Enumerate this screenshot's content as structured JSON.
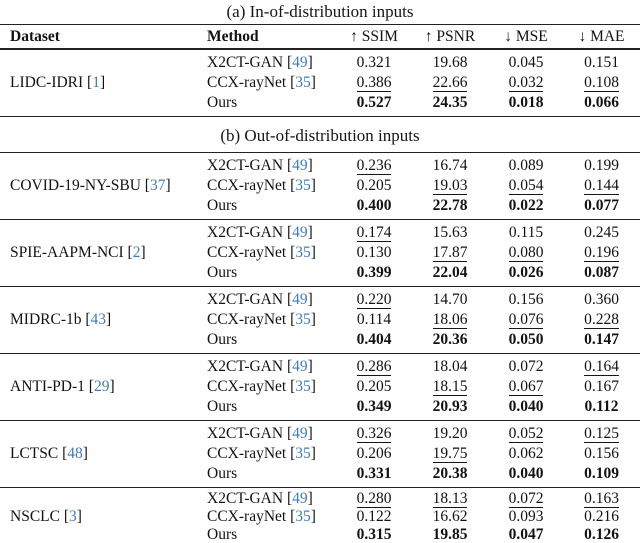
{
  "meta": {
    "background_color": "#ffffff",
    "text_color": "#121212",
    "rule_color": "#222222",
    "citation_color": "#3c7dbf"
  },
  "table": {
    "headers": [
      {
        "label": "Dataset"
      },
      {
        "label": "Method"
      },
      {
        "label": "↑ SSIM"
      },
      {
        "label": "↑ PSNR"
      },
      {
        "label": "↓ MSE"
      },
      {
        "label": "↓ MAE"
      }
    ],
    "sections": [
      {
        "title": "(a) In-of-distribution inputs",
        "groups": [
          {
            "dataset": "LIDC-IDRI",
            "cite": "1",
            "rows": [
              {
                "method": "X2CT-GAN",
                "cite": "49",
                "cells": [
                  {
                    "v": "0.321",
                    "s": "n"
                  },
                  {
                    "v": "19.68",
                    "s": "n"
                  },
                  {
                    "v": "0.045",
                    "s": "n"
                  },
                  {
                    "v": "0.151",
                    "s": "n"
                  }
                ]
              },
              {
                "method": "CCX-rayNet",
                "cite": "35",
                "cells": [
                  {
                    "v": "0.386",
                    "s": "u"
                  },
                  {
                    "v": "22.66",
                    "s": "u"
                  },
                  {
                    "v": "0.032",
                    "s": "u"
                  },
                  {
                    "v": "0.108",
                    "s": "u"
                  }
                ]
              },
              {
                "method": "Ours",
                "cite": null,
                "cells": [
                  {
                    "v": "0.527",
                    "s": "b"
                  },
                  {
                    "v": "24.35",
                    "s": "b"
                  },
                  {
                    "v": "0.018",
                    "s": "b"
                  },
                  {
                    "v": "0.066",
                    "s": "b"
                  }
                ]
              }
            ]
          }
        ]
      },
      {
        "title": "(b) Out-of-distribution inputs",
        "groups": [
          {
            "dataset": "COVID-19-NY-SBU",
            "cite": "37",
            "rows": [
              {
                "method": "X2CT-GAN",
                "cite": "49",
                "cells": [
                  {
                    "v": "0.236",
                    "s": "u"
                  },
                  {
                    "v": "16.74",
                    "s": "n"
                  },
                  {
                    "v": "0.089",
                    "s": "n"
                  },
                  {
                    "v": "0.199",
                    "s": "n"
                  }
                ]
              },
              {
                "method": "CCX-rayNet",
                "cite": "35",
                "cells": [
                  {
                    "v": "0.205",
                    "s": "n"
                  },
                  {
                    "v": "19.03",
                    "s": "u"
                  },
                  {
                    "v": "0.054",
                    "s": "u"
                  },
                  {
                    "v": "0.144",
                    "s": "u"
                  }
                ]
              },
              {
                "method": "Ours",
                "cite": null,
                "cells": [
                  {
                    "v": "0.400",
                    "s": "b"
                  },
                  {
                    "v": "22.78",
                    "s": "b"
                  },
                  {
                    "v": "0.022",
                    "s": "b"
                  },
                  {
                    "v": "0.077",
                    "s": "b"
                  }
                ]
              }
            ]
          },
          {
            "dataset": "SPIE-AAPM-NCI",
            "cite": "2",
            "rows": [
              {
                "method": "X2CT-GAN",
                "cite": "49",
                "cells": [
                  {
                    "v": "0.174",
                    "s": "u"
                  },
                  {
                    "v": "15.63",
                    "s": "n"
                  },
                  {
                    "v": "0.115",
                    "s": "n"
                  },
                  {
                    "v": "0.245",
                    "s": "n"
                  }
                ]
              },
              {
                "method": "CCX-rayNet",
                "cite": "35",
                "cells": [
                  {
                    "v": "0.130",
                    "s": "n"
                  },
                  {
                    "v": "17.87",
                    "s": "u"
                  },
                  {
                    "v": "0.080",
                    "s": "u"
                  },
                  {
                    "v": "0.196",
                    "s": "u"
                  }
                ]
              },
              {
                "method": "Ours",
                "cite": null,
                "cells": [
                  {
                    "v": "0.399",
                    "s": "b"
                  },
                  {
                    "v": "22.04",
                    "s": "b"
                  },
                  {
                    "v": "0.026",
                    "s": "b"
                  },
                  {
                    "v": "0.087",
                    "s": "b"
                  }
                ]
              }
            ]
          },
          {
            "dataset": "MIDRC-1b",
            "cite": "43",
            "rows": [
              {
                "method": "X2CT-GAN",
                "cite": "49",
                "cells": [
                  {
                    "v": "0.220",
                    "s": "u"
                  },
                  {
                    "v": "14.70",
                    "s": "n"
                  },
                  {
                    "v": "0.156",
                    "s": "n"
                  },
                  {
                    "v": "0.360",
                    "s": "n"
                  }
                ]
              },
              {
                "method": "CCX-rayNet",
                "cite": "35",
                "cells": [
                  {
                    "v": "0.114",
                    "s": "n"
                  },
                  {
                    "v": "18.06",
                    "s": "u"
                  },
                  {
                    "v": "0.076",
                    "s": "u"
                  },
                  {
                    "v": "0.228",
                    "s": "u"
                  }
                ]
              },
              {
                "method": "Ours",
                "cite": null,
                "cells": [
                  {
                    "v": "0.404",
                    "s": "b"
                  },
                  {
                    "v": "20.36",
                    "s": "b"
                  },
                  {
                    "v": "0.050",
                    "s": "b"
                  },
                  {
                    "v": "0.147",
                    "s": "b"
                  }
                ]
              }
            ]
          },
          {
            "dataset": "ANTI-PD-1",
            "cite": "29",
            "rows": [
              {
                "method": "X2CT-GAN",
                "cite": "49",
                "cells": [
                  {
                    "v": "0.286",
                    "s": "u"
                  },
                  {
                    "v": "18.04",
                    "s": "n"
                  },
                  {
                    "v": "0.072",
                    "s": "n"
                  },
                  {
                    "v": "0.164",
                    "s": "u"
                  }
                ]
              },
              {
                "method": "CCX-rayNet",
                "cite": "35",
                "cells": [
                  {
                    "v": "0.205",
                    "s": "n"
                  },
                  {
                    "v": "18.15",
                    "s": "u"
                  },
                  {
                    "v": "0.067",
                    "s": "u"
                  },
                  {
                    "v": "0.167",
                    "s": "n"
                  }
                ]
              },
              {
                "method": "Ours",
                "cite": null,
                "cells": [
                  {
                    "v": "0.349",
                    "s": "b"
                  },
                  {
                    "v": "20.93",
                    "s": "b"
                  },
                  {
                    "v": "0.040",
                    "s": "b"
                  },
                  {
                    "v": "0.112",
                    "s": "b"
                  }
                ]
              }
            ]
          },
          {
            "dataset": "LCTSC",
            "cite": "48",
            "rows": [
              {
                "method": "X2CT-GAN",
                "cite": "49",
                "cells": [
                  {
                    "v": "0.326",
                    "s": "u"
                  },
                  {
                    "v": "19.20",
                    "s": "n"
                  },
                  {
                    "v": "0.052",
                    "s": "u"
                  },
                  {
                    "v": "0.125",
                    "s": "u"
                  }
                ]
              },
              {
                "method": "CCX-rayNet",
                "cite": "35",
                "cells": [
                  {
                    "v": "0.206",
                    "s": "n"
                  },
                  {
                    "v": "19.75",
                    "s": "u"
                  },
                  {
                    "v": "0.062",
                    "s": "n"
                  },
                  {
                    "v": "0.156",
                    "s": "n"
                  }
                ]
              },
              {
                "method": "Ours",
                "cite": null,
                "cells": [
                  {
                    "v": "0.331",
                    "s": "b"
                  },
                  {
                    "v": "20.38",
                    "s": "b"
                  },
                  {
                    "v": "0.040",
                    "s": "b"
                  },
                  {
                    "v": "0.109",
                    "s": "b"
                  }
                ]
              }
            ]
          },
          {
            "dataset": "NSCLC",
            "cite": "3",
            "rows": [
              {
                "method": "X2CT-GAN",
                "cite": "49",
                "cells": [
                  {
                    "v": "0.280",
                    "s": "u"
                  },
                  {
                    "v": "18.13",
                    "s": "u"
                  },
                  {
                    "v": "0.072",
                    "s": "u"
                  },
                  {
                    "v": "0.163",
                    "s": "u"
                  }
                ]
              },
              {
                "method": "CCX-rayNet",
                "cite": "35",
                "cells": [
                  {
                    "v": "0.122",
                    "s": "n"
                  },
                  {
                    "v": "16.62",
                    "s": "n"
                  },
                  {
                    "v": "0.093",
                    "s": "n"
                  },
                  {
                    "v": "0.216",
                    "s": "n"
                  }
                ]
              },
              {
                "method": "Ours",
                "cite": null,
                "cells": [
                  {
                    "v": "0.315",
                    "s": "b"
                  },
                  {
                    "v": "19.85",
                    "s": "b"
                  },
                  {
                    "v": "0.047",
                    "s": "b"
                  },
                  {
                    "v": "0.126",
                    "s": "b"
                  }
                ]
              }
            ]
          }
        ]
      }
    ]
  }
}
